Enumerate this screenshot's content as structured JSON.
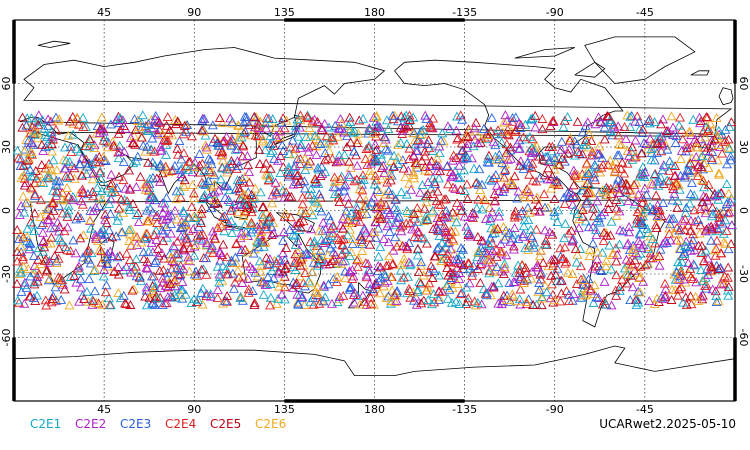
{
  "map": {
    "lon_range": [
      0,
      360
    ],
    "lat_range": [
      -90,
      90
    ],
    "lon_tick_values": [
      45,
      90,
      135,
      180,
      225,
      270,
      315
    ],
    "lon_tick_labels": [
      "45",
      "90",
      "135",
      "180",
      "-135",
      "-90",
      "-45"
    ],
    "lat_tick_values": [
      60,
      30,
      0,
      -30,
      -60
    ],
    "lat_tick_labels": [
      "60",
      "30",
      "0",
      "-30",
      "-60"
    ],
    "gridlines": "dotted",
    "marker": "open triangle",
    "observation_band_lat": [
      -45,
      45
    ]
  },
  "legend": [
    {
      "label": "C2E1",
      "color": "#12a8c8"
    },
    {
      "label": "C2E2",
      "color": "#b020c8"
    },
    {
      "label": "C2E3",
      "color": "#2860e0"
    },
    {
      "label": "C2E4",
      "color": "#e02020"
    },
    {
      "label": "C2E5",
      "color": "#c00018"
    },
    {
      "label": "C2E6",
      "color": "#f0a820"
    }
  ],
  "caption": "UCARwet2.2025-05-10"
}
